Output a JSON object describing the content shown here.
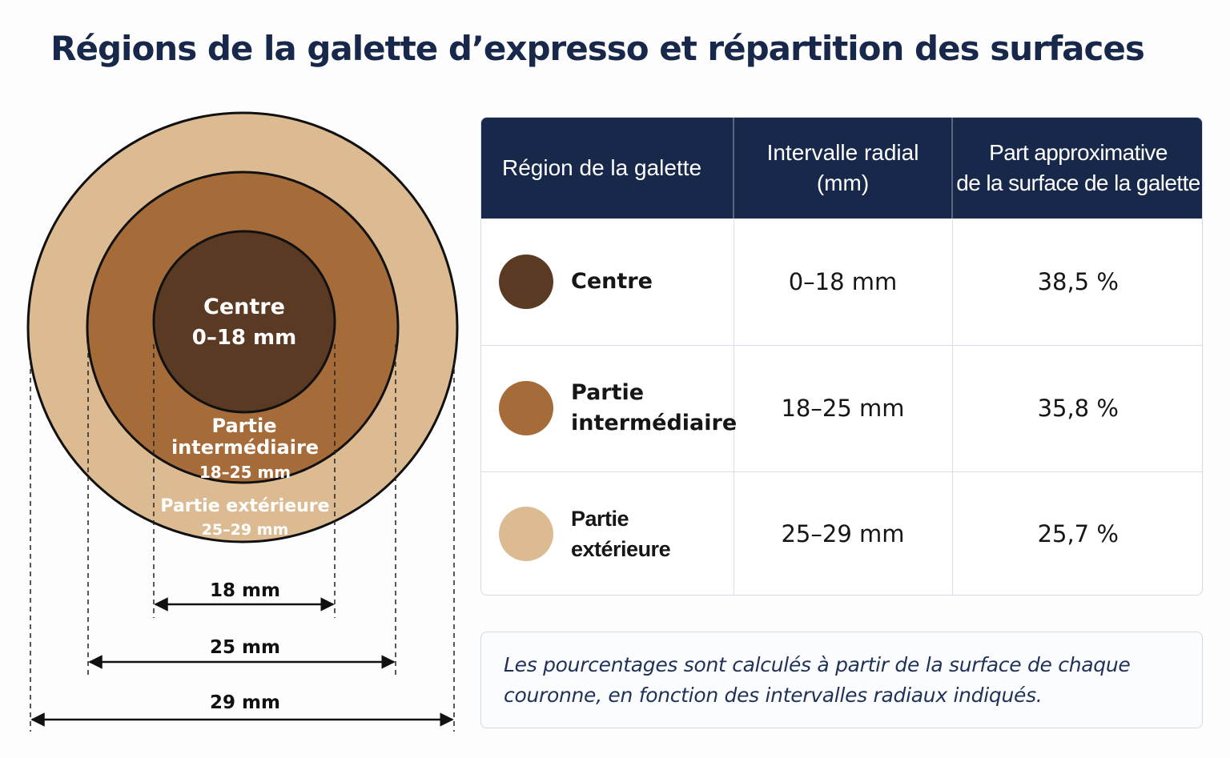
{
  "title": "Régions de la galette d’expresso et répartition des surfaces",
  "colors": {
    "centre": "#5a3a22",
    "intermediaire": "#a56c3a",
    "exterieure": "#ddbb92",
    "header_bg": "#17284a"
  },
  "diagram": {
    "centre_label": "Centre",
    "centre_range": "0–18 mm",
    "mid_label_1": "Partie",
    "mid_label_2": "intermédiaire",
    "mid_range": "18–25 mm",
    "outer_label": "Partie extérieure",
    "outer_range": "25–29 mm",
    "dim_18": "18 mm",
    "dim_25": "25 mm",
    "dim_29": "29 mm"
  },
  "table": {
    "headers": [
      "Région de la galette",
      "Intervalle radial\n(mm)",
      "Part approximative\nde la surface de la galette"
    ],
    "rows": [
      {
        "region": "Centre",
        "interval": "0–18 mm",
        "share": "38,5 %"
      },
      {
        "region": "Partie\nintermédiaire",
        "interval": "18–25 mm",
        "share": "35,8 %"
      },
      {
        "region": "Partie extérieure",
        "interval": "25–29 mm",
        "share": "25,7 %"
      }
    ]
  },
  "note": "Les pourcentages sont calculés à partir de la surface de chaque couronne, en fonction des intervalles radiaux indiqués."
}
